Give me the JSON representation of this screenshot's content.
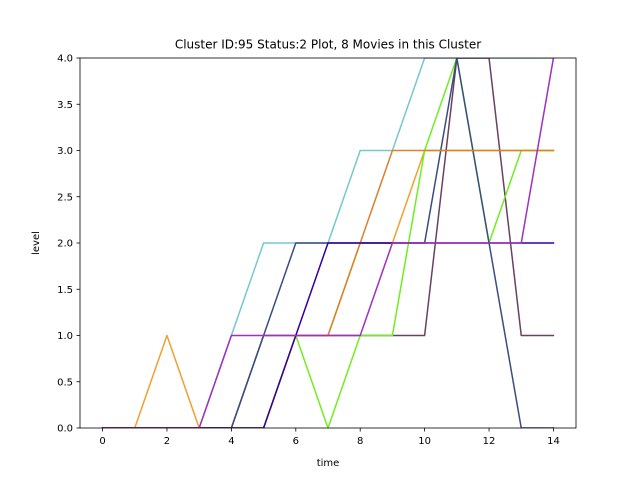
{
  "chart_data": {
    "type": "line",
    "title": "Cluster ID:95 Status:2 Plot, 8 Movies in this Cluster",
    "xlabel": "time",
    "ylabel": "level",
    "xlim": [
      -0.7,
      14.7
    ],
    "ylim": [
      0,
      4
    ],
    "xticks": [
      0,
      2,
      4,
      6,
      8,
      10,
      12,
      14
    ],
    "xtick_labels": [
      "0",
      "2",
      "4",
      "6",
      "8",
      "10",
      "12",
      "14"
    ],
    "yticks": [
      0,
      0.5,
      1,
      1.5,
      2,
      2.5,
      3,
      3.5,
      4
    ],
    "ytick_labels": [
      "0.0",
      "0.5",
      "1.0",
      "1.5",
      "2.0",
      "2.5",
      "3.0",
      "3.5",
      "4.0"
    ],
    "grid": false,
    "x": [
      0,
      1,
      2,
      3,
      4,
      5,
      6,
      7,
      8,
      9,
      10,
      11,
      12,
      13,
      14
    ],
    "series": [
      {
        "color": "#76c7cf",
        "values": [
          0,
          0,
          0,
          0,
          1,
          2,
          2,
          2,
          3,
          3,
          4,
          4,
          4,
          4,
          4
        ]
      },
      {
        "color": "#f0a030",
        "values": [
          0,
          0,
          1,
          0,
          0,
          0,
          1,
          1,
          2,
          2,
          3,
          3,
          3,
          3,
          3
        ]
      },
      {
        "color": "#6b4060",
        "values": [
          0,
          0,
          0,
          0,
          0,
          1,
          1,
          1,
          1,
          1,
          1,
          4,
          4,
          1,
          1
        ]
      },
      {
        "color": "#70ee20",
        "values": [
          0,
          0,
          0,
          0,
          0,
          0,
          1,
          0,
          1,
          1,
          3,
          4,
          2,
          3,
          3
        ]
      },
      {
        "color": "#3a4d80",
        "values": [
          0,
          0,
          0,
          0,
          0,
          1,
          2,
          2,
          2,
          2,
          2,
          4,
          2,
          0,
          0
        ]
      },
      {
        "color": "#d8822a",
        "values": [
          0,
          0,
          0,
          0,
          0,
          0,
          1,
          1,
          2,
          3,
          3,
          3,
          3,
          3,
          3
        ]
      },
      {
        "color": "#3000a0",
        "values": [
          0,
          0,
          0,
          0,
          0,
          0,
          1,
          2,
          2,
          2,
          2,
          2,
          2,
          2,
          2
        ]
      },
      {
        "color": "#a030c0",
        "values": [
          0,
          0,
          0,
          0,
          1,
          1,
          1,
          1,
          1,
          2,
          2,
          2,
          2,
          2,
          4
        ]
      }
    ]
  }
}
